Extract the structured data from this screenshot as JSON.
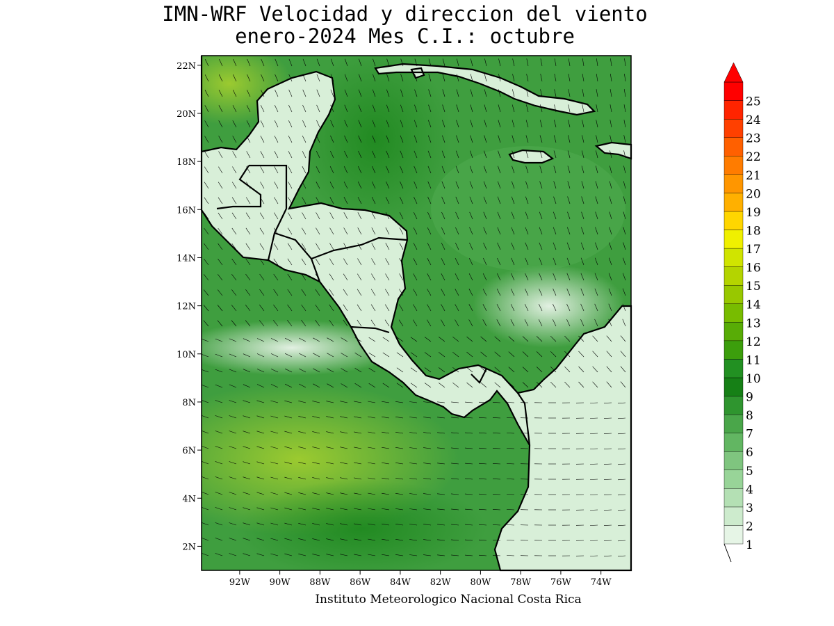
{
  "header": {
    "title_line1": "IMN-WRF Velocidad y direccion del viento",
    "title_line2": "enero-2024 Mes C.I.: octubre"
  },
  "footer": {
    "credit": "Instituto Meteorologico Nacional Costa Rica"
  },
  "map": {
    "lat_labels": [
      "22N",
      "20N",
      "18N",
      "16N",
      "14N",
      "12N",
      "10N",
      "8N",
      "6N",
      "4N",
      "2N"
    ],
    "lon_labels": [
      "92W",
      "90W",
      "88W",
      "86W",
      "84W",
      "82W",
      "80W",
      "78W",
      "76W",
      "74W"
    ],
    "lat_values": [
      22,
      20,
      18,
      16,
      14,
      12,
      10,
      8,
      6,
      4,
      2
    ],
    "lon_values": [
      -92,
      -90,
      -88,
      -86,
      -84,
      -82,
      -80,
      -78,
      -76,
      -74
    ],
    "lon_range": [
      -93.9,
      -72.5
    ],
    "lat_range": [
      1.0,
      22.4
    ],
    "land_color": "#d8efd8",
    "ocean_color": "#3f9e3f",
    "coast_color": "#000000"
  },
  "colorbar": {
    "levels": [
      "1",
      "2",
      "3",
      "4",
      "5",
      "6",
      "7",
      "8",
      "9",
      "10",
      "11",
      "12",
      "13",
      "14",
      "15",
      "16",
      "17",
      "18",
      "19",
      "20",
      "21",
      "22",
      "23",
      "24",
      "25"
    ],
    "colors": [
      "#e6f5e6",
      "#cdebcd",
      "#b4e0b4",
      "#98d498",
      "#7fc57f",
      "#62b662",
      "#4aa64a",
      "#2f952f",
      "#168016",
      "#229022",
      "#3c9e0c",
      "#58ac06",
      "#78bc00",
      "#98c800",
      "#b4d400",
      "#d0e400",
      "#f0f000",
      "#ffd600",
      "#ffb000",
      "#ff9600",
      "#ff7c00",
      "#ff6000",
      "#ff4000",
      "#ff2400",
      "#ff0000"
    ]
  }
}
